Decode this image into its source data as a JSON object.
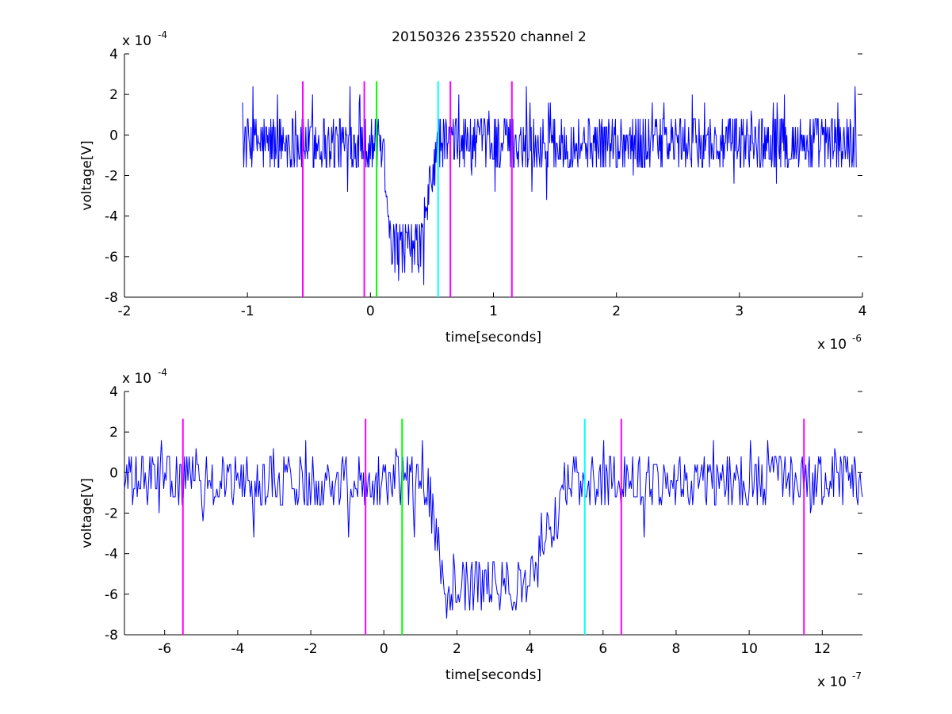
{
  "title": "20150326 235520 channel 2",
  "colors": {
    "trace": "#0000ff",
    "magenta": "#ff00ff",
    "green": "#00ff00",
    "cyan": "#00ffff",
    "axis": "#000000"
  },
  "chart_data": [
    {
      "type": "line",
      "name": "top",
      "xlabel": "time[seconds]",
      "ylabel": "voltage[V]",
      "x_scale_label": "x 10",
      "x_scale_exp": "-6",
      "y_scale_label": "x 10",
      "y_scale_exp": "-4",
      "xlim": [
        -2,
        4
      ],
      "ylim": [
        -8,
        4
      ],
      "xticks": [
        -2,
        -1,
        0,
        1,
        2,
        3,
        4
      ],
      "yticks": [
        -8,
        -6,
        -4,
        -2,
        0,
        2,
        4
      ],
      "series_x_range": [
        -1.04,
        3.95
      ],
      "grid": false,
      "vlines": [
        {
          "x": -0.55,
          "color": "magenta",
          "y_top": 2.65
        },
        {
          "x": -0.05,
          "color": "magenta",
          "y_top": 2.65
        },
        {
          "x": 0.05,
          "color": "green",
          "y_top": 2.65
        },
        {
          "x": 0.55,
          "color": "cyan",
          "y_top": 2.65
        },
        {
          "x": 0.65,
          "color": "magenta",
          "y_top": 2.65
        },
        {
          "x": 1.15,
          "color": "magenta",
          "y_top": 2.65
        }
      ],
      "signal": {
        "baseline": -0.4,
        "noise_levels": [
          -1.6,
          -1.2,
          -0.8,
          -0.4,
          0,
          0.4,
          0.8
        ],
        "spikes_up": [
          1.6,
          1.6,
          1.2,
          1.6,
          2.0,
          2.4,
          1.6
        ],
        "spikes_down": [
          -2.4,
          -2.0,
          -3.2,
          -2.8,
          -4.0,
          -2.4
        ],
        "dip_start": 0.1,
        "dip_min_start": 0.18,
        "dip_min_end": 0.4,
        "dip_end": 0.55,
        "dip_level": -5.2
      }
    },
    {
      "type": "line",
      "name": "bottom",
      "xlabel": "time[seconds]",
      "ylabel": "voltage[V]",
      "x_scale_label": "x 10",
      "x_scale_exp": "-7",
      "y_scale_label": "x 10",
      "y_scale_exp": "-4",
      "xlim": [
        -7.1,
        13.1
      ],
      "ylim": [
        -8,
        4
      ],
      "xticks": [
        -6,
        -4,
        -2,
        0,
        2,
        4,
        6,
        8,
        10,
        12
      ],
      "yticks": [
        -8,
        -6,
        -4,
        -2,
        0,
        2,
        4
      ],
      "series_x_range": [
        -7.1,
        13.1
      ],
      "grid": false,
      "vlines": [
        {
          "x": -5.5,
          "color": "magenta",
          "y_top": 2.65
        },
        {
          "x": -0.5,
          "color": "magenta",
          "y_top": 2.65
        },
        {
          "x": 0.5,
          "color": "green",
          "y_top": 2.65
        },
        {
          "x": 5.5,
          "color": "cyan",
          "y_top": 2.65
        },
        {
          "x": 6.5,
          "color": "magenta",
          "y_top": 2.65
        },
        {
          "x": 11.5,
          "color": "magenta",
          "y_top": 2.65
        }
      ],
      "signal": {
        "baseline": -0.4,
        "noise_levels": [
          -1.6,
          -1.2,
          -0.8,
          -0.4,
          0,
          0.4,
          0.8
        ],
        "spikes_up": [
          1.6,
          1.2,
          1.6
        ],
        "spikes_down": [
          -2.4,
          -2.0,
          -3.2
        ],
        "dip_start": 1.2,
        "dip_min_start": 1.6,
        "dip_min_end": 4.0,
        "dip_end": 5.0,
        "dip_level": -5.2
      }
    }
  ]
}
